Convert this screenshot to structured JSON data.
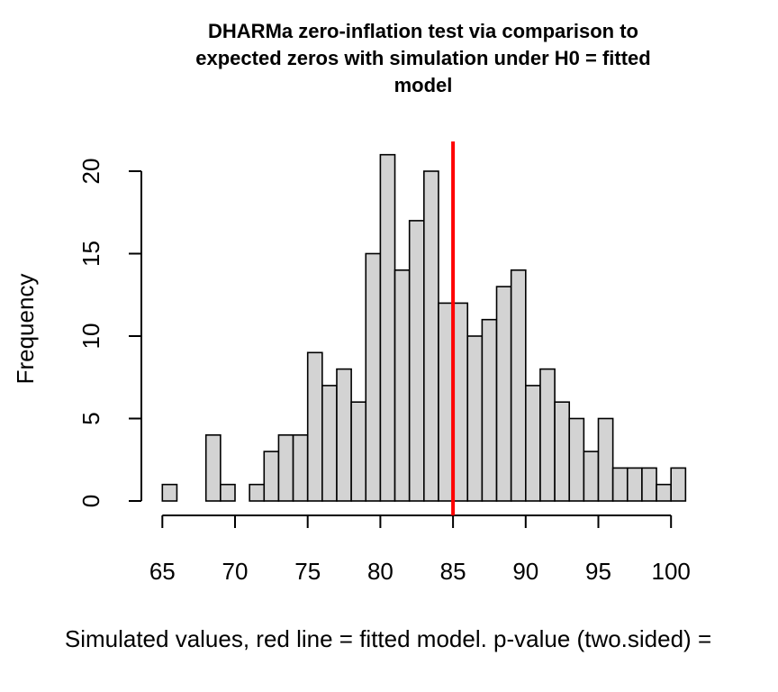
{
  "chart_data": {
    "type": "bar",
    "title_lines": [
      "DHARMa zero-inflation test via comparison to",
      "expected zeros with simulation under H0 = fitted",
      "model"
    ],
    "xlabel": "Simulated values, red line = fitted model. p-value (two.sided) =",
    "ylabel": "Frequency",
    "bin_width": 1,
    "bin_starts": [
      65,
      66,
      67,
      68,
      69,
      70,
      71,
      72,
      73,
      74,
      75,
      76,
      77,
      78,
      79,
      80,
      81,
      82,
      83,
      84,
      85,
      86,
      87,
      88,
      89,
      90,
      91,
      92,
      93,
      94,
      95,
      96,
      97,
      98,
      99,
      100
    ],
    "frequencies": [
      1,
      0,
      0,
      4,
      1,
      0,
      1,
      3,
      4,
      4,
      9,
      7,
      8,
      6,
      15,
      21,
      14,
      17,
      20,
      12,
      12,
      10,
      11,
      13,
      14,
      7,
      8,
      6,
      5,
      3,
      5,
      2,
      2,
      2,
      1,
      2
    ],
    "xlim": [
      65,
      101
    ],
    "ylim": [
      0,
      21
    ],
    "x_ticks": [
      65,
      70,
      75,
      80,
      85,
      90,
      95,
      100
    ],
    "y_ticks": [
      0,
      5,
      10,
      15,
      20
    ],
    "fitted_value": 85,
    "bar_fill": "#d3d3d3",
    "line_color": "#ff0000",
    "grid": false,
    "legend": "none"
  }
}
